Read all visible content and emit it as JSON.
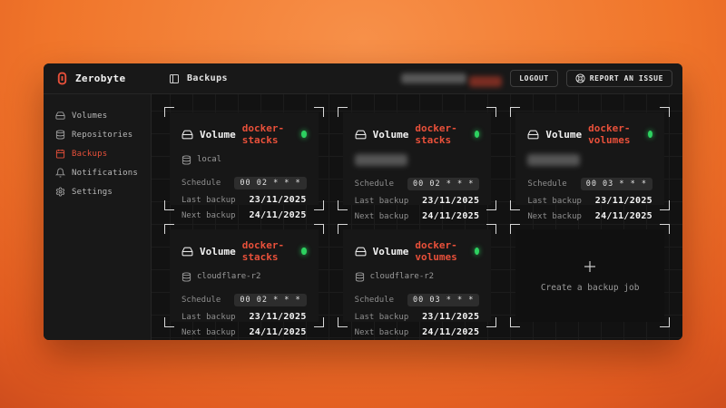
{
  "app": {
    "brand": "Zerobyte",
    "accent_color": "#e8503a",
    "status_green": "#2dd160"
  },
  "topbar": {
    "page_icon": "panel-left-icon",
    "page_title": "Backups",
    "logout_label": "LOGOUT",
    "report_label": "REPORT AN ISSUE",
    "report_icon": "life-buoy-icon",
    "user_info_redacted": true
  },
  "sidebar": {
    "items": [
      {
        "id": "volumes",
        "label": "Volumes",
        "icon": "hard-drive-icon",
        "active": false
      },
      {
        "id": "repositories",
        "label": "Repositories",
        "icon": "database-icon",
        "active": false
      },
      {
        "id": "backups",
        "label": "Backups",
        "icon": "calendar-icon",
        "active": true
      },
      {
        "id": "notifications",
        "label": "Notifications",
        "icon": "bell-icon",
        "active": false
      },
      {
        "id": "settings",
        "label": "Settings",
        "icon": "gear-icon",
        "active": false
      }
    ]
  },
  "main": {
    "labels": {
      "volume_prefix": "Volume",
      "schedule": "Schedule",
      "last_backup": "Last backup",
      "next_backup": "Next backup"
    },
    "cards": [
      {
        "volume": "docker-stacks",
        "repository": "local",
        "repository_redacted": false,
        "schedule": "00 02 * * *",
        "last_backup": "23/11/2025",
        "next_backup": "24/11/2025",
        "status": "active"
      },
      {
        "volume": "docker-stacks",
        "repository": "",
        "repository_redacted": true,
        "schedule": "00 02 * * *",
        "last_backup": "23/11/2025",
        "next_backup": "24/11/2025",
        "status": "active"
      },
      {
        "volume": "docker-volumes",
        "repository": "",
        "repository_redacted": true,
        "schedule": "00 03 * * *",
        "last_backup": "23/11/2025",
        "next_backup": "24/11/2025",
        "status": "active"
      },
      {
        "volume": "docker-stacks",
        "repository": "cloudflare-r2",
        "repository_redacted": false,
        "schedule": "00 02 * * *",
        "last_backup": "23/11/2025",
        "next_backup": "24/11/2025",
        "status": "active"
      },
      {
        "volume": "docker-volumes",
        "repository": "cloudflare-r2",
        "repository_redacted": false,
        "schedule": "00 03 * * *",
        "last_backup": "23/11/2025",
        "next_backup": "24/11/2025",
        "status": "active"
      }
    ],
    "create_card": {
      "label": "Create a backup job",
      "icon": "plus-icon"
    }
  }
}
